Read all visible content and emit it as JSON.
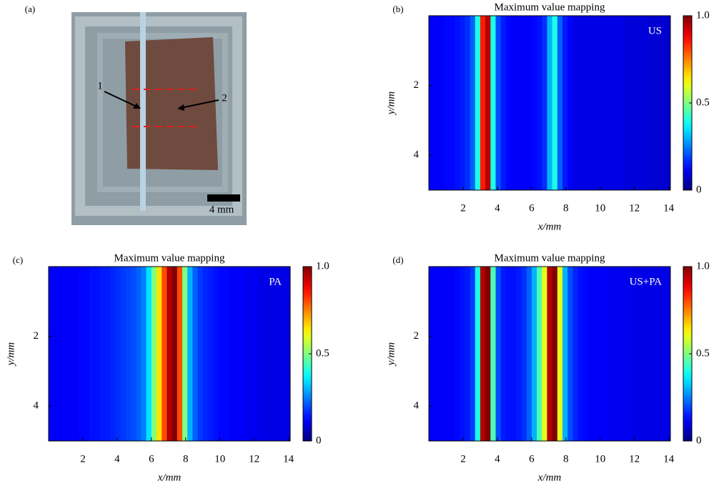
{
  "photo": {
    "panel_label": "(a)",
    "markers": [
      "1",
      "2"
    ],
    "scale_bar": "4 mm"
  },
  "chart_data": [
    {
      "type": "heatmap",
      "panel_label": "(b)",
      "title": "Maximum value mapping",
      "annotation": "US",
      "xlabel": "x/mm",
      "ylabel": "y/mm",
      "colormap": "jet",
      "x": [
        0.15,
        0.45,
        0.75,
        1.05,
        1.35,
        1.65,
        1.95,
        2.25,
        2.55,
        2.85,
        3.15,
        3.45,
        3.75,
        4.05,
        4.35,
        4.65,
        4.95,
        5.25,
        5.55,
        5.85,
        6.15,
        6.45,
        6.75,
        7.05,
        7.35,
        7.65,
        7.95,
        8.25,
        8.55,
        8.85,
        9.15,
        9.45,
        9.75,
        10.05,
        10.35,
        10.65,
        10.95,
        11.25,
        11.55,
        11.85,
        12.15,
        12.45,
        12.75,
        13.05,
        13.35,
        13.65,
        13.95
      ],
      "values": [
        0.12,
        0.12,
        0.12,
        0.13,
        0.13,
        0.14,
        0.15,
        0.17,
        0.22,
        0.4,
        0.85,
        0.95,
        0.4,
        0.2,
        0.15,
        0.13,
        0.12,
        0.12,
        0.12,
        0.12,
        0.13,
        0.14,
        0.17,
        0.3,
        0.4,
        0.22,
        0.15,
        0.12,
        0.1,
        0.1,
        0.1,
        0.1,
        0.1,
        0.1,
        0.1,
        0.1,
        0.1,
        0.1,
        0.09,
        0.09,
        0.09,
        0.09,
        0.09,
        0.08,
        0.08,
        0.08,
        0.08
      ],
      "xlim": [
        0,
        14.1
      ],
      "ylim": [
        5,
        0
      ],
      "xticks": [
        2,
        4,
        6,
        8,
        10,
        12,
        14
      ],
      "yticks": [
        2,
        4
      ],
      "clim": [
        0,
        1
      ],
      "cticks": [
        0,
        0.5,
        {
          "value": 1,
          "label": "1.0"
        }
      ]
    },
    {
      "type": "heatmap",
      "panel_label": "(c)",
      "title": "Maximum value mapping",
      "annotation": "PA",
      "xlabel": "x/mm",
      "ylabel": "y/mm",
      "colormap": "jet",
      "x": [
        0.15,
        0.45,
        0.75,
        1.05,
        1.35,
        1.65,
        1.95,
        2.25,
        2.55,
        2.85,
        3.15,
        3.45,
        3.75,
        4.05,
        4.35,
        4.65,
        4.95,
        5.25,
        5.55,
        5.85,
        6.15,
        6.45,
        6.75,
        7.05,
        7.35,
        7.65,
        7.95,
        8.25,
        8.55,
        8.85,
        9.15,
        9.45,
        9.75,
        10.05,
        10.35,
        10.65,
        10.95,
        11.25,
        11.55,
        11.85,
        12.15,
        12.45,
        12.75,
        13.05,
        13.35,
        13.65,
        13.95
      ],
      "values": [
        0.12,
        0.12,
        0.12,
        0.12,
        0.12,
        0.12,
        0.13,
        0.13,
        0.14,
        0.14,
        0.15,
        0.15,
        0.16,
        0.17,
        0.18,
        0.19,
        0.2,
        0.22,
        0.25,
        0.35,
        0.5,
        0.65,
        0.8,
        0.95,
        1.0,
        0.8,
        0.5,
        0.3,
        0.22,
        0.18,
        0.16,
        0.15,
        0.14,
        0.13,
        0.13,
        0.12,
        0.12,
        0.12,
        0.11,
        0.11,
        0.11,
        0.1,
        0.1,
        0.1,
        0.1,
        0.1,
        0.1
      ],
      "xlim": [
        0,
        14.1
      ],
      "ylim": [
        5,
        0
      ],
      "xticks": [
        2,
        4,
        6,
        8,
        10,
        12,
        14
      ],
      "yticks": [
        2,
        4
      ],
      "clim": [
        0,
        1
      ],
      "cticks": [
        0,
        0.5,
        {
          "value": 1,
          "label": "1.0"
        }
      ]
    },
    {
      "type": "heatmap",
      "panel_label": "(d)",
      "title": "Maximum value mapping",
      "annotation": "US+PA",
      "xlabel": "x/mm",
      "ylabel": "y/mm",
      "colormap": "jet",
      "x": [
        0.15,
        0.45,
        0.75,
        1.05,
        1.35,
        1.65,
        1.95,
        2.25,
        2.55,
        2.85,
        3.15,
        3.45,
        3.75,
        4.05,
        4.35,
        4.65,
        4.95,
        5.25,
        5.55,
        5.85,
        6.15,
        6.45,
        6.75,
        7.05,
        7.35,
        7.65,
        7.95,
        8.25,
        8.55,
        8.85,
        9.15,
        9.45,
        9.75,
        10.05,
        10.35,
        10.65,
        10.95,
        11.25,
        11.55,
        11.85,
        12.15,
        12.45,
        12.75,
        13.05,
        13.35,
        13.65,
        13.95
      ],
      "values": [
        0.12,
        0.12,
        0.12,
        0.12,
        0.12,
        0.13,
        0.14,
        0.15,
        0.18,
        0.4,
        0.95,
        1.0,
        0.45,
        0.2,
        0.15,
        0.14,
        0.14,
        0.15,
        0.17,
        0.22,
        0.3,
        0.45,
        0.6,
        0.95,
        1.0,
        0.6,
        0.3,
        0.2,
        0.16,
        0.14,
        0.13,
        0.12,
        0.12,
        0.12,
        0.12,
        0.11,
        0.11,
        0.11,
        0.11,
        0.1,
        0.1,
        0.1,
        0.1,
        0.1,
        0.1,
        0.1,
        0.1
      ],
      "xlim": [
        0,
        14.1
      ],
      "ylim": [
        5,
        0
      ],
      "xticks": [
        2,
        4,
        6,
        8,
        10,
        12,
        14
      ],
      "yticks": [
        2,
        4
      ],
      "clim": [
        0,
        1
      ],
      "cticks": [
        0,
        0.5,
        {
          "value": 1,
          "label": "1.0"
        }
      ]
    }
  ]
}
